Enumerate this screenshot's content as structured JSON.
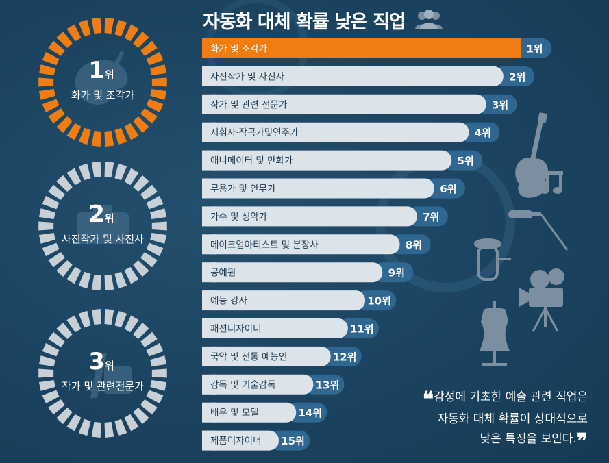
{
  "title": "자동화 대체 확률 낮은 직업",
  "colors": {
    "highlight": "#ef7d12",
    "bar": "#dce3e9",
    "rank_tab": "#2f6790",
    "ring_grey": "#c7d0d7",
    "background": "#1c4460"
  },
  "chart_data": {
    "type": "bar",
    "orientation": "horizontal",
    "categories": [
      "화가 및 조각가",
      "사진작가 및 사진사",
      "작가 및 관련 전문가",
      "지휘자·작곡가및연주가",
      "애니메이터 및 만화가",
      "무용가 및 안무가",
      "가수 및 성악가",
      "메이크업아티스트 및 분장사",
      "공예원",
      "예능 강사",
      "패션디자이너",
      "국악 및 전통 예능인",
      "감독 및 기술감독",
      "배우 및 모델",
      "제품디자이너"
    ],
    "ranks": [
      "1위",
      "2위",
      "3위",
      "4위",
      "5위",
      "6위",
      "7위",
      "8위",
      "9위",
      "10위",
      "11위",
      "12위",
      "13위",
      "14위",
      "15위"
    ],
    "values": [
      15,
      14,
      13,
      12,
      11,
      10,
      9,
      8,
      7,
      6,
      5,
      4,
      3,
      2,
      1
    ],
    "highlight_index": 0
  },
  "badges": [
    {
      "rank_num": "1",
      "rank_suffix": "위",
      "label": "화가 및 조각가",
      "icon": "palette-icon",
      "ring_color": "#ef7d12"
    },
    {
      "rank_num": "2",
      "rank_suffix": "위",
      "label": "사진작가 및 사진사",
      "icon": "camera-icon",
      "ring_color": "#c7d0d7"
    },
    {
      "rank_num": "3",
      "rank_suffix": "위",
      "label": "작가 및 관련전문가",
      "icon": "pen-icon",
      "ring_color": "#c7d0d7"
    }
  ],
  "quote": {
    "open": "❝",
    "close": "❞",
    "lines": [
      "감성에 기초한 예술 관련 직업은",
      "자동화 대체 확률이 상대적으로",
      "낮은 특징을 보인다."
    ]
  },
  "decorations": [
    "people-icon",
    "guitar-icon",
    "music-notes-icon",
    "microphone-icon",
    "tuba-icon",
    "film-camera-icon",
    "mannequin-icon",
    "gear-icon"
  ]
}
